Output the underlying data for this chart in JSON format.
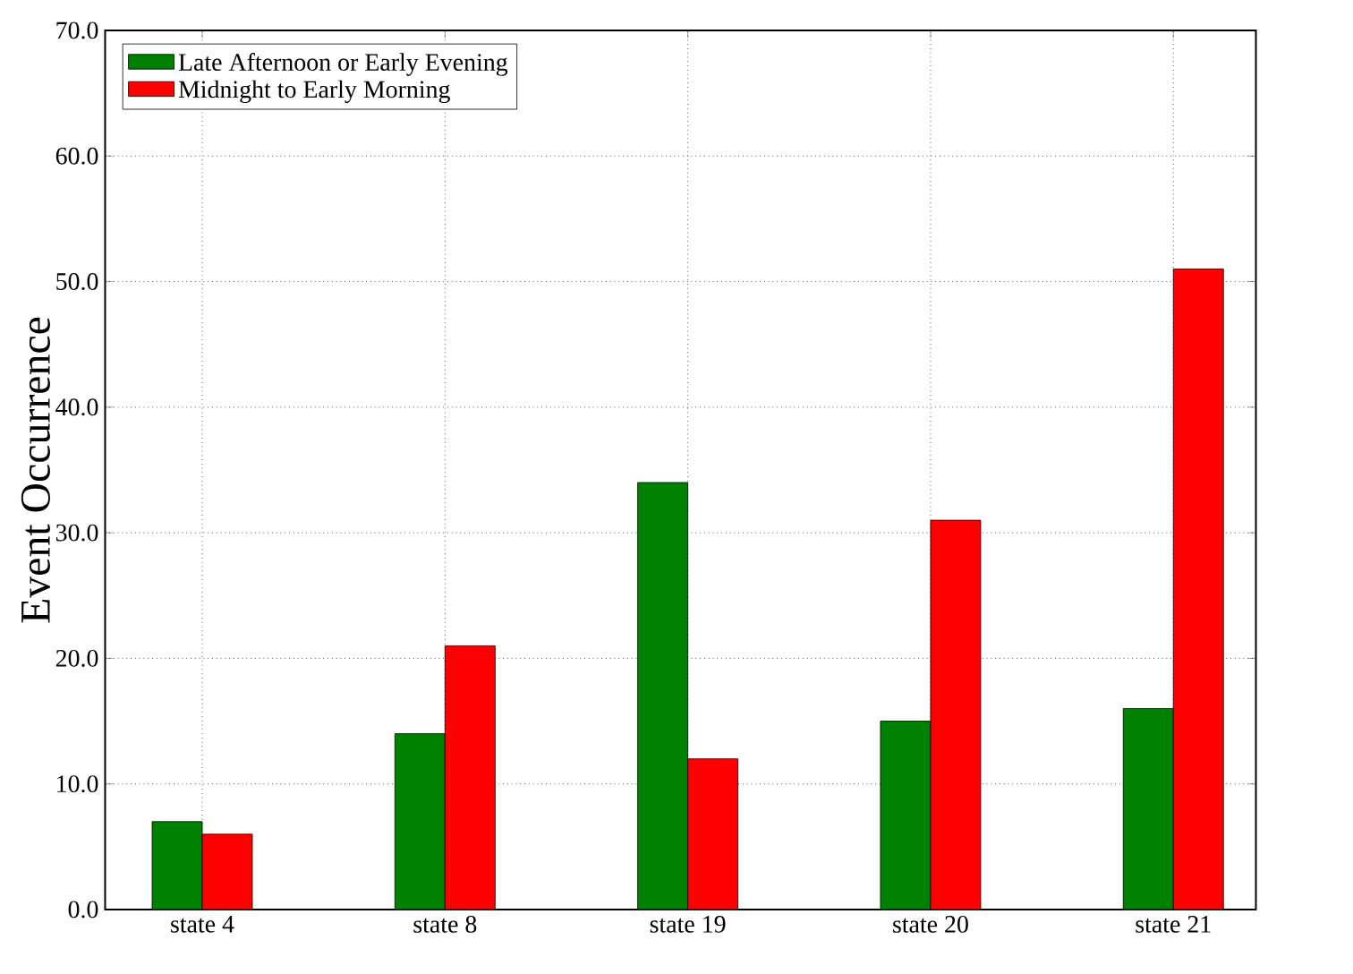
{
  "chart_data": {
    "type": "bar",
    "ylabel": "Event Occurrence",
    "categories": [
      "state 4",
      "state 8",
      "state 19",
      "state 20",
      "state 21"
    ],
    "series": [
      {
        "name": "Late Afternoon or Early Evening",
        "color": "#008000",
        "values": [
          7,
          14,
          34,
          15,
          16
        ]
      },
      {
        "name": "Midnight to Early Morning",
        "color": "#ff0000",
        "values": [
          6,
          21,
          12,
          31,
          51
        ]
      }
    ],
    "ylim": [
      0,
      70
    ],
    "yticks": [
      {
        "value": 0,
        "label": "0.0"
      },
      {
        "value": 10,
        "label": "10.0"
      },
      {
        "value": 20,
        "label": "20.0"
      },
      {
        "value": 30,
        "label": "30.0"
      },
      {
        "value": 40,
        "label": "40.0"
      },
      {
        "value": 50,
        "label": "50.0"
      },
      {
        "value": 60,
        "label": "60.0"
      },
      {
        "value": 70,
        "label": "70.0"
      }
    ],
    "grid": true,
    "legend": "top left"
  }
}
